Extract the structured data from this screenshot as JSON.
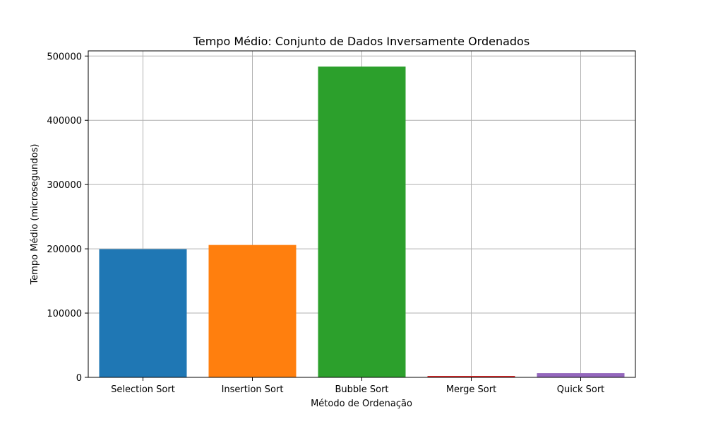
{
  "chart_data": {
    "type": "bar",
    "title": "Tempo Médio: Conjunto de Dados Inversamente Ordenados",
    "xlabel": "Método de Ordenação",
    "ylabel": "Tempo Médio (microsegundos)",
    "categories": [
      "Selection Sort",
      "Insertion Sort",
      "Bubble Sort",
      "Merge Sort",
      "Quick Sort"
    ],
    "values": [
      199500,
      206000,
      483500,
      2200,
      6500
    ],
    "colors": [
      "#1f77b4",
      "#ff7f0e",
      "#2ca02c",
      "#d62728",
      "#9467bd"
    ],
    "ylim": [
      0,
      508000
    ],
    "yticks": [
      0,
      100000,
      200000,
      300000,
      400000,
      500000
    ],
    "grid": true
  }
}
